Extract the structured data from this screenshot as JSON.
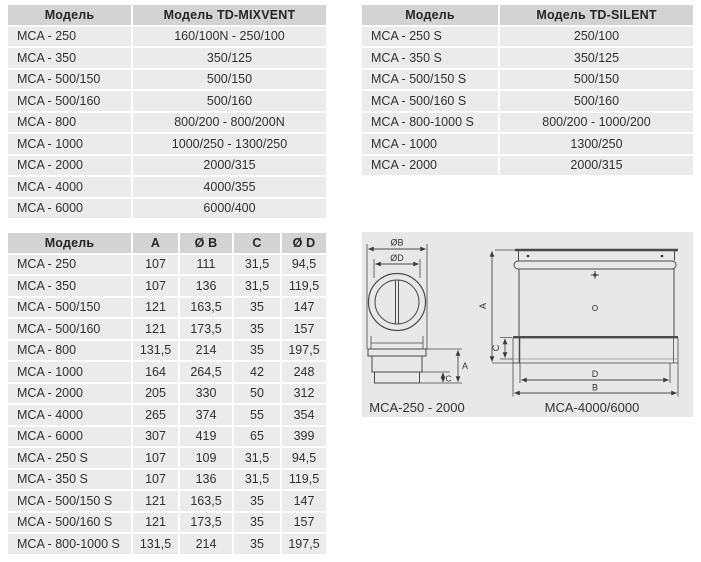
{
  "colors": {
    "header_bg": "#d3d3d3",
    "row_bg": "#ebebeb",
    "panel_bg": "#e8e8e8",
    "text": "#303030",
    "line": "#4a4a4a"
  },
  "mixvent_table": {
    "headers": [
      "Модель",
      "Модель TD-MIXVENT"
    ],
    "rows": [
      [
        "MCA - 250",
        "160/100N - 250/100"
      ],
      [
        "MCA - 350",
        "350/125"
      ],
      [
        "MCA - 500/150",
        "500/150"
      ],
      [
        "MCA - 500/160",
        "500/160"
      ],
      [
        "MCA - 800",
        "800/200 - 800/200N"
      ],
      [
        "MCA - 1000",
        "1000/250 - 1300/250"
      ],
      [
        "MCA - 2000",
        "2000/315"
      ],
      [
        "MCA - 4000",
        "4000/355"
      ],
      [
        "MCA - 6000",
        "6000/400"
      ]
    ]
  },
  "silent_table": {
    "headers": [
      "Модель",
      "Модель TD-SILENT"
    ],
    "rows": [
      [
        "MCA - 250 S",
        "250/100"
      ],
      [
        "MCA - 350 S",
        "350/125"
      ],
      [
        "MCA - 500/150 S",
        "500/150"
      ],
      [
        "MCA - 500/160 S",
        "500/160"
      ],
      [
        "MCA - 800-1000 S",
        "800/200 - 1000/200"
      ],
      [
        "MCA - 1000",
        "1300/250"
      ],
      [
        "MCA - 2000",
        "2000/315"
      ]
    ]
  },
  "dimensions_table": {
    "headers": [
      "Модель",
      "A",
      "Ø B",
      "C",
      "Ø D"
    ],
    "rows": [
      [
        "MCA - 250",
        "107",
        "111",
        "31,5",
        "94,5"
      ],
      [
        "MCA - 350",
        "107",
        "136",
        "31,5",
        "119,5"
      ],
      [
        "MCA - 500/150",
        "121",
        "163,5",
        "35",
        "147"
      ],
      [
        "MCA - 500/160",
        "121",
        "173,5",
        "35",
        "157"
      ],
      [
        "MCA - 800",
        "131,5",
        "214",
        "35",
        "197,5"
      ],
      [
        "MCA - 1000",
        "164",
        "264,5",
        "42",
        "248"
      ],
      [
        "MCA - 2000",
        "205",
        "330",
        "50",
        "312"
      ],
      [
        "MCA - 4000",
        "265",
        "374",
        "55",
        "354"
      ],
      [
        "MCA - 6000",
        "307",
        "419",
        "65",
        "399"
      ],
      [
        "MCA - 250 S",
        "107",
        "109",
        "31,5",
        "94,5"
      ],
      [
        "MCA - 350 S",
        "107",
        "136",
        "31,5",
        "119,5"
      ],
      [
        "MCA - 500/150 S",
        "121",
        "163,5",
        "35",
        "147"
      ],
      [
        "MCA - 500/160 S",
        "121",
        "173,5",
        "35",
        "157"
      ],
      [
        "MCA - 800-1000 S",
        "131,5",
        "214",
        "35",
        "197,5"
      ]
    ]
  },
  "diagram": {
    "labels": {
      "ob": "ØB",
      "od": "ØD",
      "a_left": "A",
      "c_left": "C",
      "a_right": "A",
      "c_right": "C",
      "d": "D",
      "b": "B"
    },
    "captions": [
      "MCA-250 - 2000",
      "MCA-4000/6000"
    ]
  }
}
